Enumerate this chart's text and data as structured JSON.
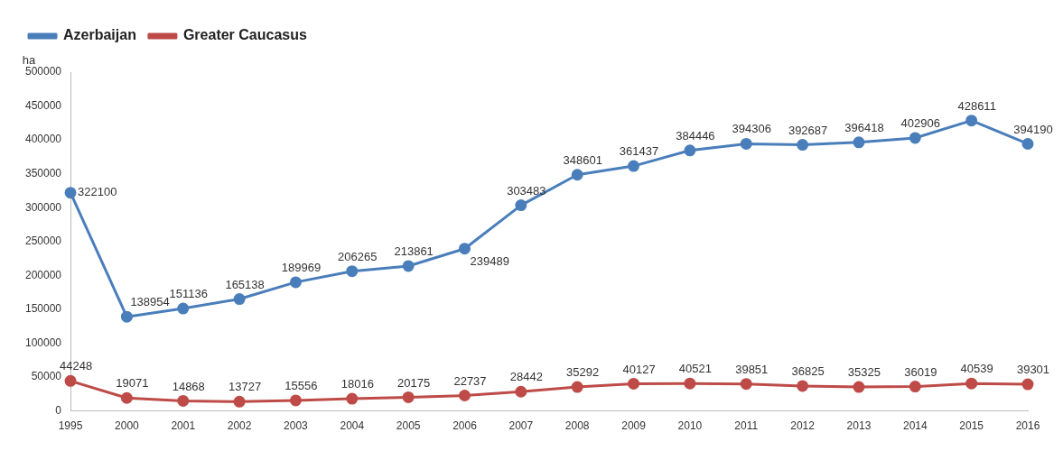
{
  "chart_data": {
    "type": "line",
    "ylabel": "ha",
    "categories": [
      "1995",
      "2000",
      "2001",
      "2002",
      "2003",
      "2004",
      "2005",
      "2006",
      "2007",
      "2008",
      "2009",
      "2010",
      "2011",
      "2012",
      "2013",
      "2014",
      "2015",
      "2016"
    ],
    "series": [
      {
        "name": "Azerbaijan",
        "color": "#4a7ebb",
        "values": [
          322100,
          138954,
          151136,
          165138,
          189969,
          206265,
          213861,
          239489,
          303483,
          348601,
          361437,
          384446,
          394306,
          392687,
          396418,
          402906,
          428611,
          394190
        ]
      },
      {
        "name": "Greater Caucasus",
        "color": "#be4b48",
        "values": [
          44248,
          19071,
          14868,
          13727,
          15556,
          18016,
          20175,
          22737,
          28442,
          35292,
          40127,
          40521,
          39851,
          36825,
          35325,
          36019,
          40539,
          39301
        ]
      }
    ],
    "ylim": [
      0,
      500000
    ],
    "yticks": [
      0,
      50000,
      100000,
      150000,
      200000,
      250000,
      300000,
      350000,
      400000,
      450000,
      500000
    ],
    "grid": false,
    "legend": "top left",
    "marker": "circle",
    "line_style": "solid",
    "data_labels": true
  }
}
